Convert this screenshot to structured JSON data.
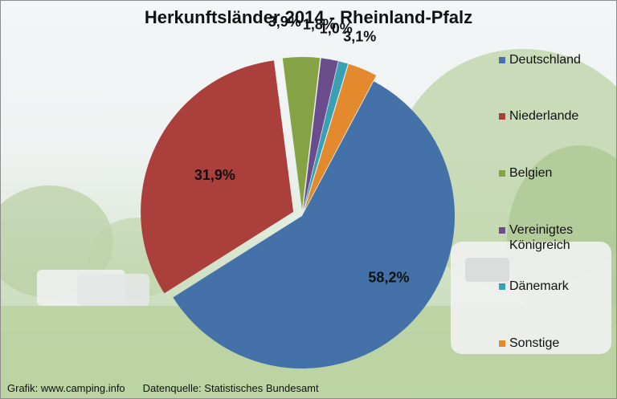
{
  "chart_data": {
    "type": "pie",
    "title": "Herkunftsländer 2014 - Rheinland-Pfalz",
    "categories": [
      "Deutschland",
      "Niederlande",
      "Belgien",
      "Vereinigtes Königreich",
      "Dänemark",
      "Sonstige"
    ],
    "values": [
      58.2,
      31.9,
      3.9,
      1.8,
      1.0,
      3.1
    ],
    "value_labels": [
      "58,2%",
      "31,9%",
      "3,9%",
      "1,8%",
      "1,0%",
      "3,1%"
    ],
    "colors": [
      "#4472a8",
      "#ab3f3c",
      "#85a344",
      "#6b4c8c",
      "#3aa0b4",
      "#e38a2e"
    ],
    "legend_position": "right",
    "exploded": true
  },
  "legend": {
    "items": [
      {
        "label_lines": [
          "Deutschland"
        ]
      },
      {
        "label_lines": [
          "Niederlande"
        ]
      },
      {
        "label_lines": [
          "Belgien"
        ]
      },
      {
        "label_lines": [
          "Vereinigtes",
          "Königreich"
        ]
      },
      {
        "label_lines": [
          "Dänemark"
        ]
      },
      {
        "label_lines": [
          "Sonstige"
        ]
      }
    ]
  },
  "footer": {
    "credit": "Grafik: www.camping.info",
    "source": "Datenquelle: Statistisches Bundesamt"
  }
}
